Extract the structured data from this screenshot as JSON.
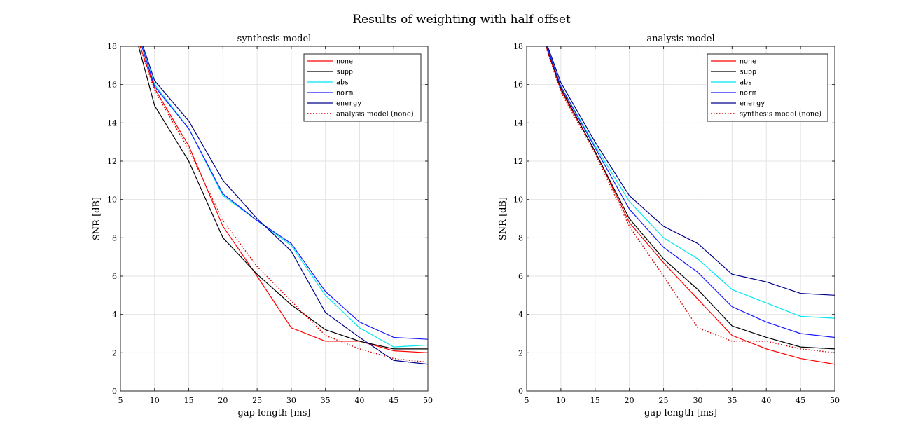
{
  "figure_title": "Results of weighting with half offset",
  "colors": {
    "none": "#ff0000",
    "supp": "#000000",
    "abs": "#00e5ee",
    "norm": "#1a1aff",
    "energy": "#00008b",
    "reference": "#d00000"
  },
  "chart_data": [
    {
      "type": "line",
      "title": "synthesis model",
      "xlabel": "gap length [ms]",
      "ylabel": "SNR [dB]",
      "xlim": [
        5,
        50
      ],
      "ylim": [
        0,
        18
      ],
      "xticks": [
        5,
        10,
        15,
        20,
        25,
        30,
        35,
        40,
        45,
        50
      ],
      "yticks": [
        0,
        2,
        4,
        6,
        8,
        10,
        12,
        14,
        16,
        18
      ],
      "grid": true,
      "legend_position": "top-right",
      "x": [
        5,
        10,
        15,
        20,
        25,
        30,
        35,
        40,
        45,
        50
      ],
      "series": [
        {
          "name": "none",
          "color_key": "none",
          "style": "solid",
          "values": [
            21.0,
            15.8,
            12.8,
            8.6,
            6.0,
            3.3,
            2.6,
            2.6,
            2.1,
            2.0
          ]
        },
        {
          "name": "supp",
          "color_key": "supp",
          "style": "solid",
          "values": [
            21.5,
            14.9,
            12.0,
            8.0,
            6.1,
            4.5,
            3.2,
            2.6,
            2.2,
            2.2
          ]
        },
        {
          "name": "abs",
          "color_key": "abs",
          "style": "solid",
          "values": [
            21.5,
            16.0,
            13.7,
            10.2,
            8.9,
            7.6,
            5.0,
            3.3,
            2.3,
            2.4
          ]
        },
        {
          "name": "norm",
          "color_key": "norm",
          "style": "solid",
          "values": [
            21.5,
            15.9,
            13.7,
            10.3,
            8.9,
            7.7,
            5.2,
            3.6,
            2.8,
            2.7
          ]
        },
        {
          "name": "energy",
          "color_key": "energy",
          "style": "solid",
          "values": [
            21.5,
            16.2,
            14.1,
            11.0,
            9.0,
            7.3,
            4.1,
            2.8,
            1.6,
            1.4
          ]
        },
        {
          "name": "analysis model (none)",
          "color_key": "reference",
          "style": "dotted",
          "values": [
            21.0,
            15.7,
            12.6,
            8.9,
            6.5,
            4.7,
            2.9,
            2.2,
            1.7,
            1.5
          ]
        }
      ],
      "legend": [
        {
          "name": "none",
          "mono": true
        },
        {
          "name": "supp",
          "mono": true
        },
        {
          "name": "abs",
          "mono": true
        },
        {
          "name": "norm",
          "mono": true
        },
        {
          "name": "energy",
          "mono": true
        },
        {
          "name": "analysis model (none)",
          "mono": false
        }
      ]
    },
    {
      "type": "line",
      "title": "analysis model",
      "xlabel": "gap length [ms]",
      "ylabel": "SNR [dB]",
      "xlim": [
        5,
        50
      ],
      "ylim": [
        0,
        18
      ],
      "xticks": [
        5,
        10,
        15,
        20,
        25,
        30,
        35,
        40,
        45,
        50
      ],
      "yticks": [
        0,
        2,
        4,
        6,
        8,
        10,
        12,
        14,
        16,
        18
      ],
      "grid": true,
      "legend_position": "top-right",
      "x": [
        5,
        10,
        15,
        20,
        25,
        30,
        35,
        40,
        45,
        50
      ],
      "series": [
        {
          "name": "none",
          "color_key": "none",
          "style": "solid",
          "values": [
            21.0,
            15.7,
            12.5,
            8.8,
            6.7,
            4.8,
            2.9,
            2.2,
            1.7,
            1.4
          ]
        },
        {
          "name": "supp",
          "color_key": "supp",
          "style": "solid",
          "values": [
            21.0,
            15.8,
            12.5,
            9.0,
            6.9,
            5.3,
            3.4,
            2.8,
            2.3,
            2.2
          ]
        },
        {
          "name": "abs",
          "color_key": "abs",
          "style": "solid",
          "values": [
            21.0,
            15.9,
            12.8,
            9.9,
            8.0,
            6.9,
            5.3,
            4.6,
            3.9,
            3.8
          ]
        },
        {
          "name": "norm",
          "color_key": "norm",
          "style": "solid",
          "values": [
            21.0,
            15.9,
            12.7,
            9.5,
            7.5,
            6.2,
            4.4,
            3.6,
            3.0,
            2.8
          ]
        },
        {
          "name": "energy",
          "color_key": "energy",
          "style": "solid",
          "values": [
            21.0,
            16.1,
            13.0,
            10.2,
            8.6,
            7.7,
            6.1,
            5.7,
            5.1,
            5.0
          ]
        },
        {
          "name": "synthesis model (none)",
          "color_key": "reference",
          "style": "dotted",
          "values": [
            21.0,
            15.6,
            12.4,
            8.6,
            6.0,
            3.3,
            2.6,
            2.6,
            2.2,
            2.0
          ]
        }
      ],
      "legend": [
        {
          "name": "none",
          "mono": true
        },
        {
          "name": "supp",
          "mono": true
        },
        {
          "name": "abs",
          "mono": true
        },
        {
          "name": "norm",
          "mono": true
        },
        {
          "name": "energy",
          "mono": true
        },
        {
          "name": "synthesis model (none)",
          "mono": false
        }
      ]
    }
  ]
}
